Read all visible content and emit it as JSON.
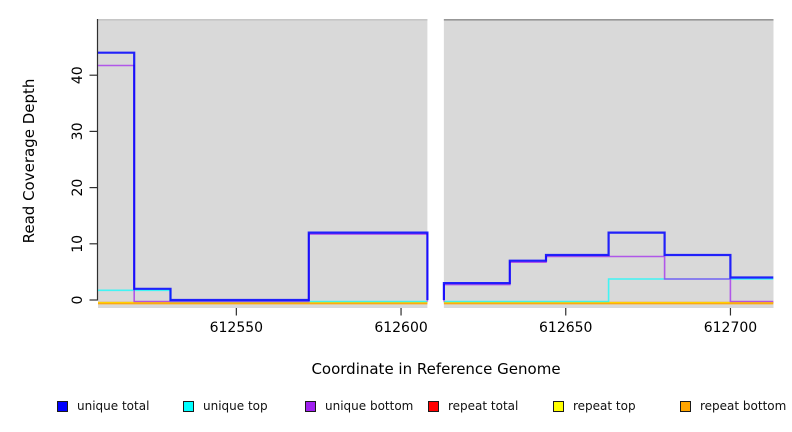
{
  "chart_data": {
    "type": "line",
    "subtype": "step-coverage-plot",
    "title": "",
    "xlabel": "Coordinate in Reference Genome",
    "ylabel": "Read Coverage Depth",
    "x_ticks": [
      612550,
      612600,
      612650,
      612700
    ],
    "y_ticks": [
      0,
      10,
      20,
      30,
      40
    ],
    "x_range": [
      612508,
      612713
    ],
    "y_range": [
      0,
      50
    ],
    "grid": false,
    "panel_background": "#d9d9d9",
    "no_data_gap_x": [
      612608,
      612613
    ],
    "legend_position": "bottom",
    "series": [
      {
        "name": "unique total",
        "color": "#0000ff",
        "z": 6,
        "segments": [
          [
            [
              612508,
              44
            ],
            [
              612519,
              44
            ],
            [
              612519,
              2
            ],
            [
              612530,
              2
            ],
            [
              612530,
              0
            ],
            [
              612572,
              0
            ],
            [
              612572,
              12
            ],
            [
              612608,
              12
            ],
            [
              612608,
              0
            ]
          ],
          [
            [
              612613,
              0
            ],
            [
              612613,
              3
            ],
            [
              612633,
              3
            ],
            [
              612633,
              7
            ],
            [
              612644,
              7
            ],
            [
              612644,
              8
            ],
            [
              612663,
              8
            ],
            [
              612663,
              12
            ],
            [
              612680,
              12
            ],
            [
              612680,
              8
            ],
            [
              612700,
              8
            ],
            [
              612700,
              4
            ],
            [
              612713,
              4
            ]
          ]
        ]
      },
      {
        "name": "unique top",
        "color": "#00ffff",
        "z": 4,
        "segments": [
          [
            [
              612508,
              2
            ],
            [
              612530,
              2
            ],
            [
              612530,
              0
            ],
            [
              612608,
              0
            ]
          ],
          [
            [
              612613,
              0
            ],
            [
              612663,
              0
            ],
            [
              612663,
              4
            ],
            [
              612713,
              4
            ]
          ]
        ]
      },
      {
        "name": "unique bottom",
        "color": "#a020f0",
        "z": 5,
        "segments": [
          [
            [
              612508,
              42
            ],
            [
              612519,
              42
            ],
            [
              612519,
              0
            ],
            [
              612572,
              0
            ],
            [
              612572,
              12
            ],
            [
              612608,
              12
            ],
            [
              612608,
              0
            ]
          ],
          [
            [
              612613,
              0
            ],
            [
              612613,
              3
            ],
            [
              612633,
              3
            ],
            [
              612633,
              7
            ],
            [
              612644,
              7
            ],
            [
              612644,
              8
            ],
            [
              612680,
              8
            ],
            [
              612680,
              4
            ],
            [
              612700,
              4
            ],
            [
              612700,
              0
            ],
            [
              612713,
              0
            ]
          ]
        ]
      },
      {
        "name": "repeat total",
        "color": "#ff0000",
        "z": 1,
        "segments": [
          [
            [
              612508,
              0
            ],
            [
              612608,
              0
            ]
          ],
          [
            [
              612613,
              0
            ],
            [
              612713,
              0
            ]
          ]
        ]
      },
      {
        "name": "repeat top",
        "color": "#ffff00",
        "z": 2,
        "segments": [
          [
            [
              612508,
              0
            ],
            [
              612608,
              0
            ]
          ],
          [
            [
              612613,
              0
            ],
            [
              612713,
              0
            ]
          ]
        ]
      },
      {
        "name": "repeat bottom",
        "color": "#ffa500",
        "z": 3,
        "segments": [
          [
            [
              612508,
              0
            ],
            [
              612608,
              0
            ]
          ],
          [
            [
              612613,
              0
            ],
            [
              612713,
              0
            ]
          ]
        ]
      }
    ]
  }
}
